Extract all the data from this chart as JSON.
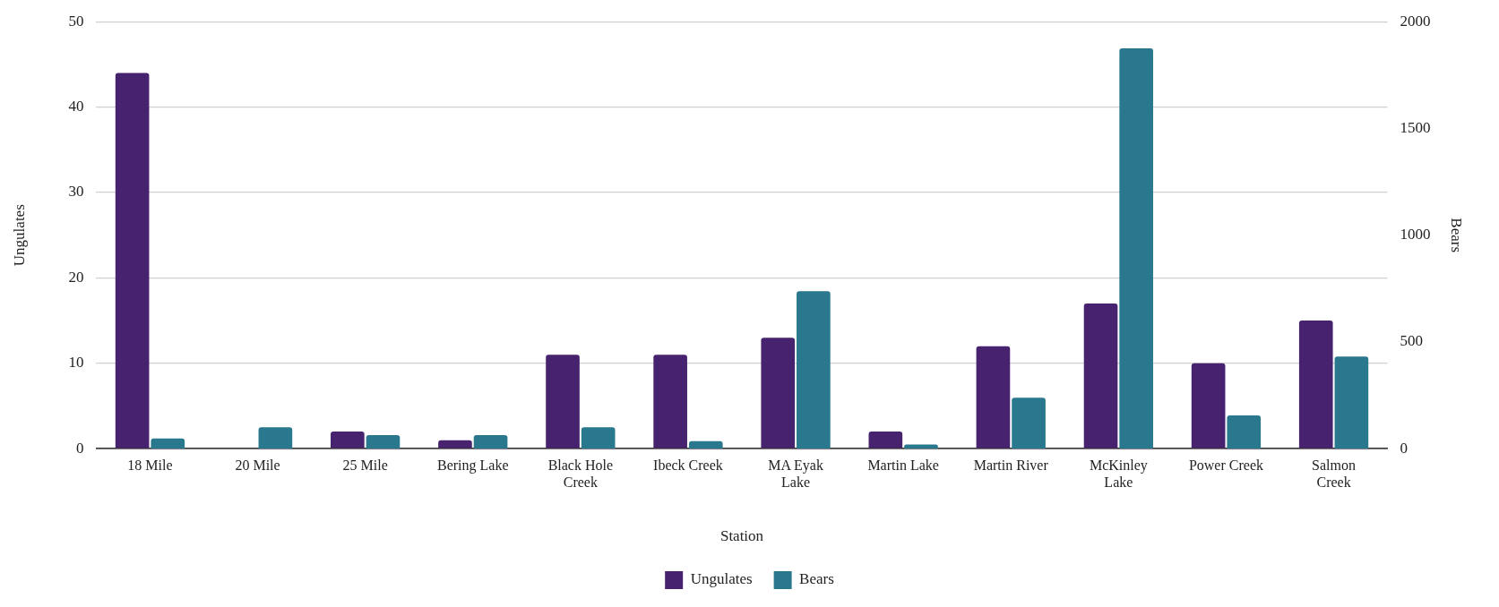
{
  "chart_data": {
    "type": "bar",
    "xlabel": "Station",
    "ylabel": "Ungulates",
    "y2label": "Bears",
    "categories": [
      "18 Mile",
      "20 Mile",
      "25 Mile",
      "Bering Lake",
      "Black Hole Creek",
      "Ibeck Creek",
      "MA Eyak Lake",
      "Martin Lake",
      "Martin River",
      "McKinley Lake",
      "Power Creek",
      "Salmon Creek"
    ],
    "series": [
      {
        "name": "Ungulates",
        "color": "#47236f",
        "values": [
          44,
          0,
          2,
          1,
          11,
          11,
          13,
          2,
          12,
          17,
          10,
          15
        ]
      },
      {
        "name": "Bears",
        "color": "#2a788e",
        "axis": "y2",
        "values": [
          48,
          100,
          64,
          64,
          100,
          35,
          738,
          20,
          239,
          1875,
          156,
          432
        ]
      }
    ],
    "ylim": [
      0,
      50
    ],
    "yticks": [
      0,
      10,
      20,
      30,
      40,
      50
    ],
    "y2lim": [
      0,
      2000
    ],
    "y2ticks": [
      0,
      500,
      1000,
      1500,
      2000
    ],
    "grid": "y",
    "legend": "bottom"
  }
}
